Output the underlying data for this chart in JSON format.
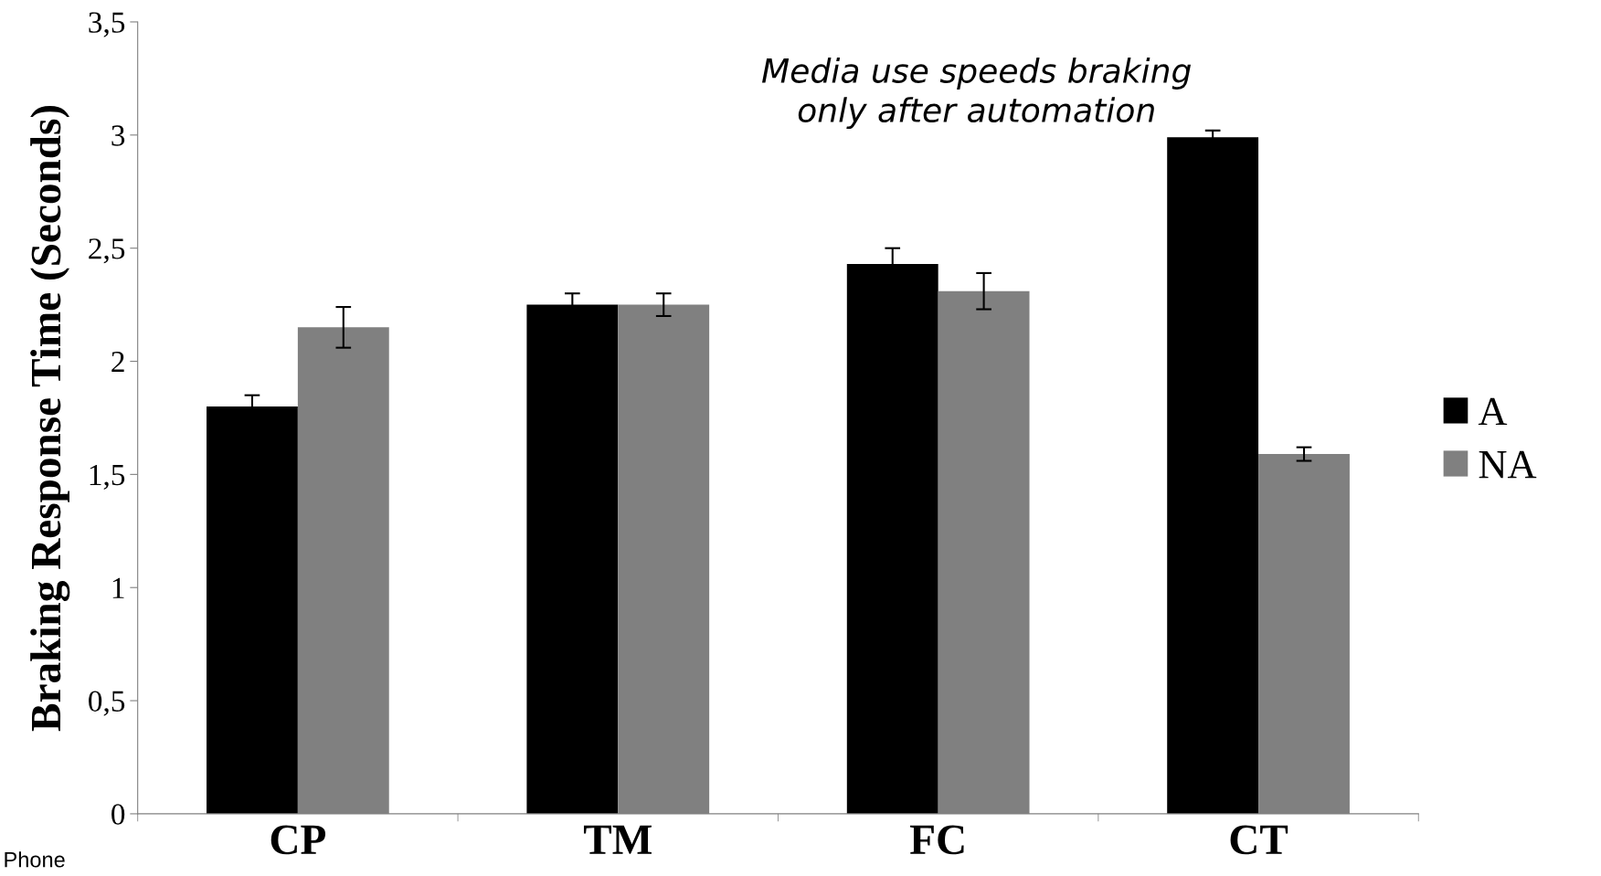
{
  "chart_data": {
    "type": "bar",
    "ylabel": "Braking Response Time (Seconds)",
    "categories": [
      "CP",
      "TM",
      "FC",
      "CT"
    ],
    "series": [
      {
        "name": "A",
        "color": "#000000",
        "values": [
          1.8,
          2.25,
          2.43,
          2.99
        ],
        "errors": [
          0.05,
          0.05,
          0.07,
          0.03
        ]
      },
      {
        "name": "NA",
        "color": "#808080",
        "values": [
          2.15,
          2.25,
          2.31,
          1.59
        ],
        "errors": [
          0.09,
          0.05,
          0.08,
          0.03
        ]
      }
    ],
    "ylim": [
      0,
      3.5
    ],
    "yticks": [
      0,
      {
        "value": 0.5,
        "label": "0,5"
      },
      1,
      {
        "value": 1.5,
        "label": "1,5"
      },
      2,
      {
        "value": 2.5,
        "label": "2,5"
      },
      3,
      {
        "value": 3.5,
        "label": "3,5"
      }
    ],
    "grid": false,
    "legend": "right",
    "annotations": [
      {
        "text": "Media use speeds braking\nonly after automation"
      },
      "Phone"
    ]
  }
}
